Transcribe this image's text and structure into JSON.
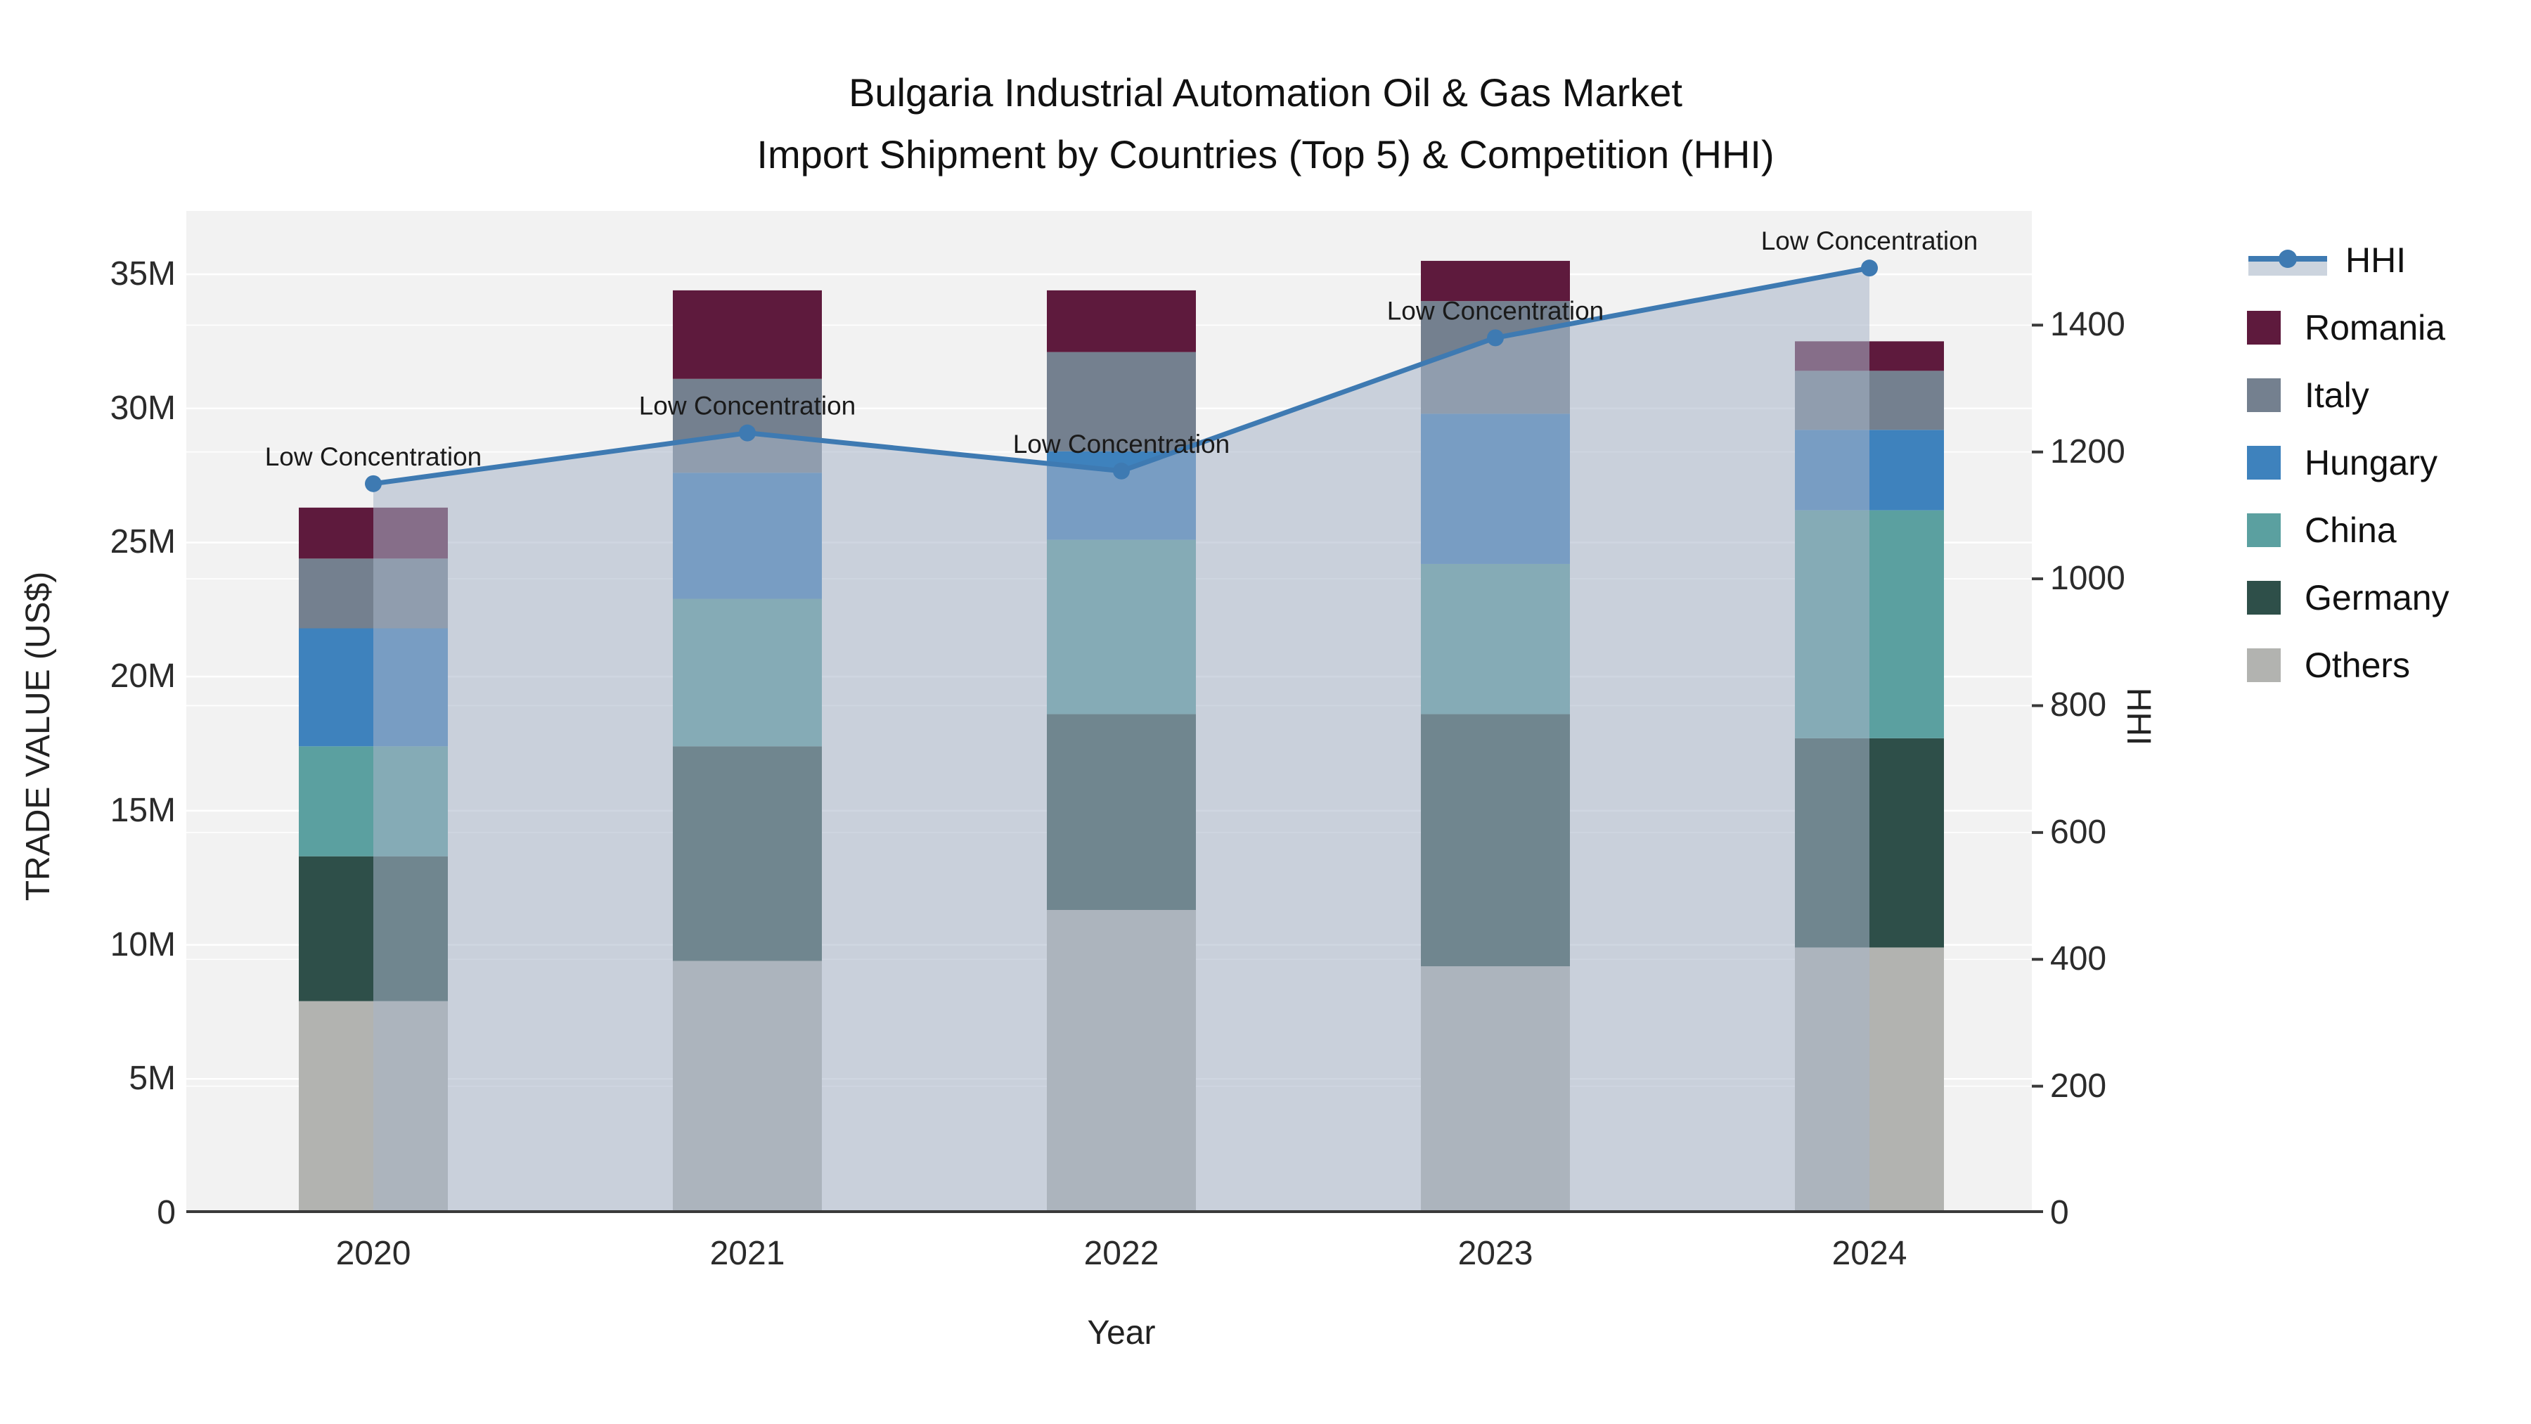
{
  "chart_data": {
    "type": "bar+line",
    "title": "Bulgaria Industrial Automation Oil & Gas Market",
    "subtitle": "Import Shipment by Countries (Top 5) & Competition (HHI)",
    "xlabel": "Year",
    "ylabel": "TRADE VALUE (US$)",
    "y2label": "HHI",
    "categories": [
      "2020",
      "2021",
      "2022",
      "2023",
      "2024"
    ],
    "stacked": true,
    "series": [
      {
        "name": "Others",
        "color": "#b2b3b0",
        "values": [
          7.9,
          9.4,
          11.3,
          9.2,
          9.9
        ]
      },
      {
        "name": "Germany",
        "color": "#2e4f49",
        "values": [
          5.4,
          8.0,
          7.3,
          9.4,
          7.8
        ]
      },
      {
        "name": "China",
        "color": "#5ba0a0",
        "values": [
          4.1,
          5.5,
          6.5,
          5.6,
          8.5
        ]
      },
      {
        "name": "Hungary",
        "color": "#3e82bd",
        "values": [
          4.4,
          4.7,
          3.3,
          5.6,
          3.0
        ]
      },
      {
        "name": "Italy",
        "color": "#74808f",
        "values": [
          2.6,
          3.5,
          3.7,
          4.2,
          2.2
        ]
      },
      {
        "name": "Romania",
        "color": "#5e1a3d",
        "values": [
          1.9,
          3.3,
          2.3,
          1.5,
          1.1
        ]
      }
    ],
    "values_unit": "M US$",
    "line": {
      "name": "HHI",
      "color": "#3e7ab2",
      "fill": "rgba(168,181,201,0.55)",
      "values": [
        1150,
        1230,
        1170,
        1380,
        1490
      ]
    },
    "annotations": [
      "Low Concentration",
      "Low Concentration",
      "Low Concentration",
      "Low Concentration",
      "Low Concentration"
    ],
    "ytick_values": [
      0,
      5,
      10,
      15,
      20,
      25,
      30,
      35
    ],
    "ytick_labels": [
      "0",
      "5M",
      "10M",
      "15M",
      "20M",
      "25M",
      "30M",
      "35M"
    ],
    "y2tick_values": [
      0,
      200,
      400,
      600,
      800,
      1000,
      1200,
      1400
    ],
    "y2tick_labels": [
      "0",
      "200",
      "400",
      "600",
      "800",
      "1000",
      "1200",
      "1400"
    ],
    "ylim": [
      0,
      37.36
    ],
    "y2lim": [
      0,
      1580
    ],
    "legend": [
      {
        "name": "HHI",
        "type": "line",
        "color": "#3e7ab2",
        "band": "#ccd4de"
      },
      {
        "name": "Romania",
        "type": "box",
        "color": "#5e1a3d"
      },
      {
        "name": "Italy",
        "type": "box",
        "color": "#74808f"
      },
      {
        "name": "Hungary",
        "type": "box",
        "color": "#3e82bd"
      },
      {
        "name": "China",
        "type": "box",
        "color": "#5ba0a0"
      },
      {
        "name": "Germany",
        "type": "box",
        "color": "#2e4f49"
      },
      {
        "name": "Others",
        "type": "box",
        "color": "#b2b3b0"
      }
    ],
    "plot_bg": "#f2f2f2",
    "grid_color": "#ffffff",
    "axis_line_color": "#3a3a3a",
    "annotation_color": "#1a1a1a"
  }
}
